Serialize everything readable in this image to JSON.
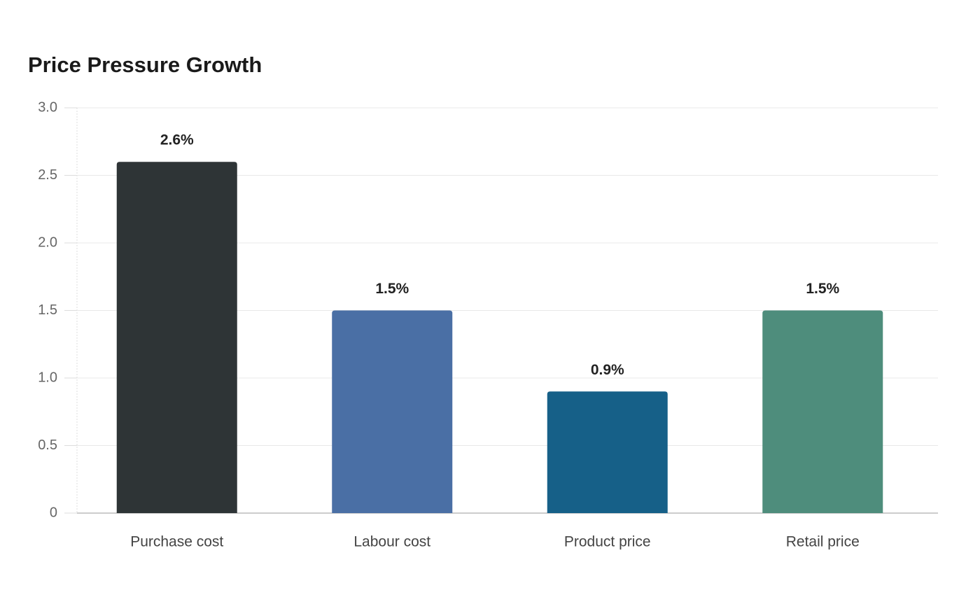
{
  "chart_data": {
    "type": "bar",
    "title": "Price Pressure Growth",
    "categories": [
      "Purchase cost",
      "Labour cost",
      "Product price",
      "Retail price"
    ],
    "values": [
      2.6,
      1.5,
      0.9,
      1.5
    ],
    "value_labels": [
      "2.6%",
      "1.5%",
      "0.9%",
      "1.5%"
    ],
    "colors": [
      "#2e3436",
      "#4a6fa5",
      "#166088",
      "#4e8d7c"
    ],
    "ylim": [
      0,
      3
    ],
    "yticks": [
      0,
      0.5,
      {
        "value": 1,
        "label": "1.0"
      },
      1.5,
      {
        "value": 2,
        "label": "2.0"
      },
      2.5,
      {
        "value": 3,
        "label": "3.0"
      }
    ],
    "grid": true
  }
}
